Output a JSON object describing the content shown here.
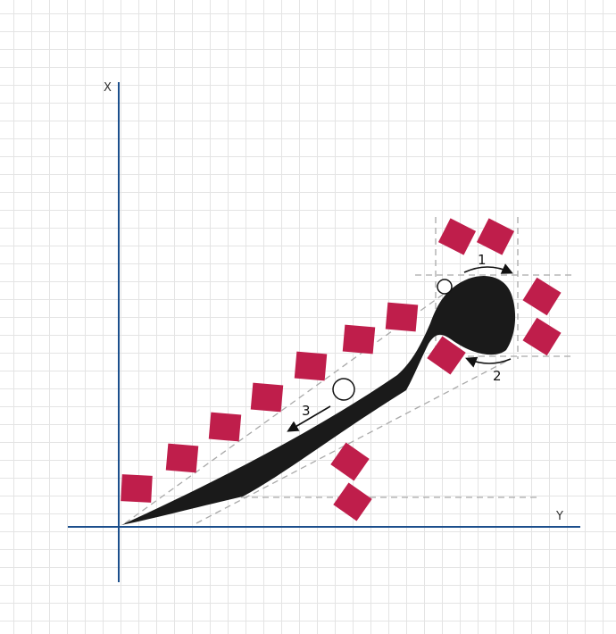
{
  "axes": {
    "x_label": "X",
    "y_label": "Y"
  },
  "steps": [
    "1",
    "2",
    "3"
  ],
  "colors": {
    "dot": "#bf1e4b",
    "ink": "#1a1a1a",
    "axis": "#1c4f8c",
    "guide": "#a9a9a9"
  }
}
